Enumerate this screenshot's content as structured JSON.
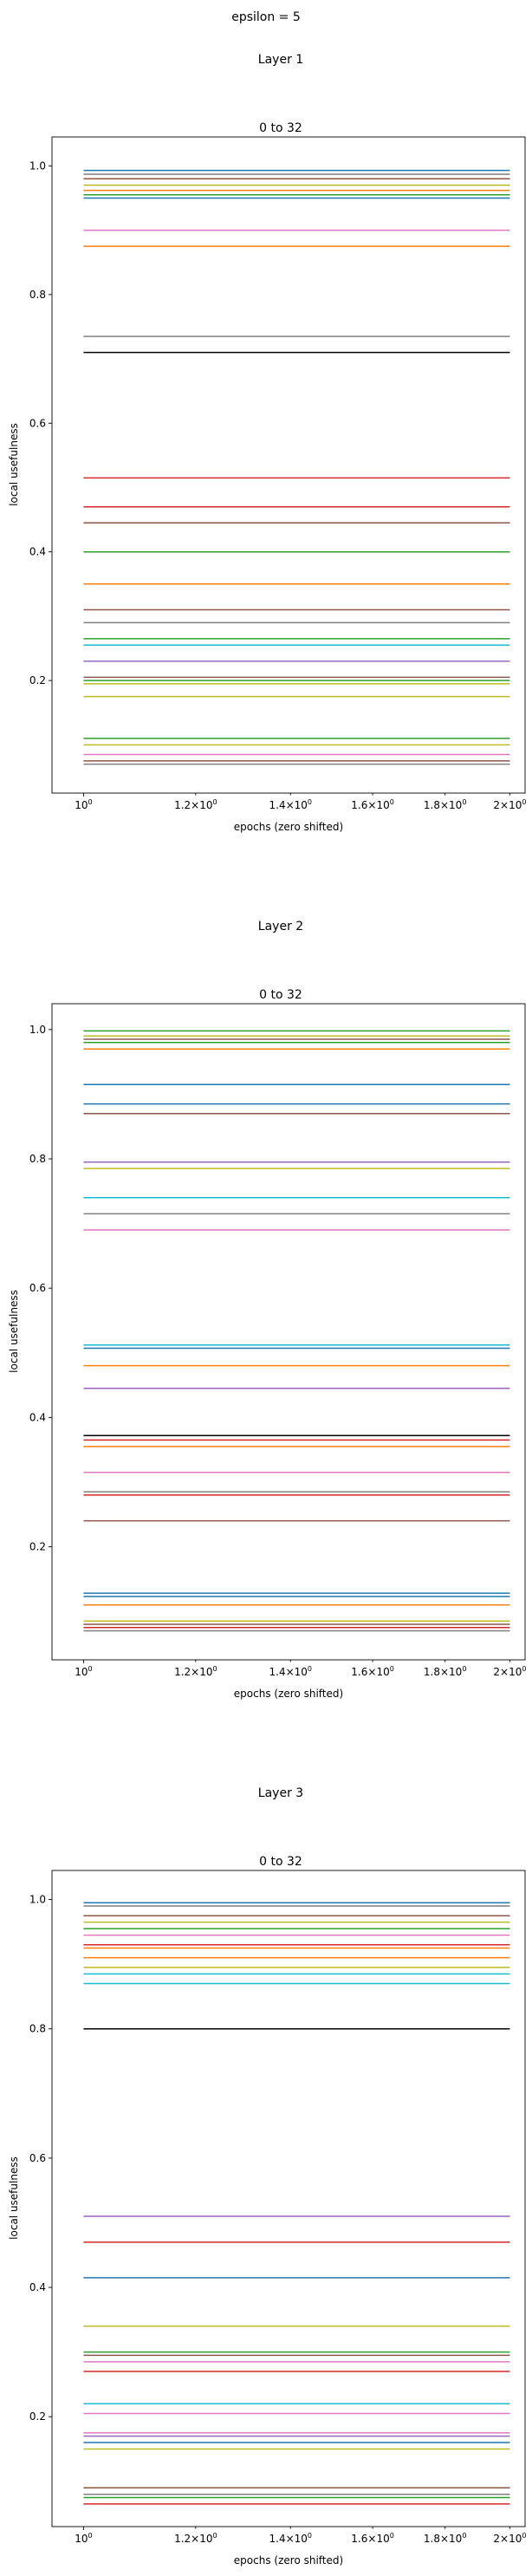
{
  "figure": {
    "suptitle": "epsilon = 5"
  },
  "palette": [
    "#1f77b4",
    "#ff7f0e",
    "#2ca02c",
    "#d62728",
    "#9467bd",
    "#8c564b",
    "#e377c2",
    "#7f7f7f",
    "#bcbd22",
    "#17becf"
  ],
  "chart_data": [
    {
      "type": "line",
      "section_title": "Layer 1",
      "title": "0 to 32",
      "xlabel": "epochs (zero shifted)",
      "ylabel": "local usefulness",
      "xscale": "log",
      "xlim": [
        0.95,
        2.05
      ],
      "ylim": [
        0.025,
        1.045
      ],
      "x": [
        1,
        2
      ],
      "xticks": [
        {
          "v": 1.0,
          "base": "10",
          "exp": "0",
          "prefix": ""
        },
        {
          "v": 1.2,
          "base": "10",
          "exp": "0",
          "prefix": "1.2×"
        },
        {
          "v": 1.4,
          "base": "10",
          "exp": "0",
          "prefix": "1.4×"
        },
        {
          "v": 1.6,
          "base": "10",
          "exp": "0",
          "prefix": "1.6×"
        },
        {
          "v": 1.8,
          "base": "10",
          "exp": "0",
          "prefix": "1.8×"
        },
        {
          "v": 2.0,
          "base": "10",
          "exp": "0",
          "prefix": "2×"
        }
      ],
      "yticks": [
        "0.2",
        "0.4",
        "0.6",
        "0.8",
        "1.0"
      ],
      "grid": false,
      "legend": "none",
      "series": [
        {
          "values": [
            0.993,
            0.993
          ],
          "color": "#1f77b4"
        },
        {
          "values": [
            0.987,
            0.987
          ],
          "color": "#7f7f7f"
        },
        {
          "values": [
            0.98,
            0.98
          ],
          "color": "#8c564b"
        },
        {
          "values": [
            0.97,
            0.97
          ],
          "color": "#bcbd22"
        },
        {
          "values": [
            0.962,
            0.962
          ],
          "color": "#ff7f0e"
        },
        {
          "values": [
            0.955,
            0.955
          ],
          "color": "#2ca02c"
        },
        {
          "values": [
            0.95,
            0.95
          ],
          "color": "#1f77b4"
        },
        {
          "values": [
            0.9,
            0.9
          ],
          "color": "#e377c2"
        },
        {
          "values": [
            0.875,
            0.875
          ],
          "color": "#ff7f0e"
        },
        {
          "values": [
            0.735,
            0.735
          ],
          "color": "#7f7f7f"
        },
        {
          "values": [
            0.71,
            0.71
          ],
          "color": "#000000"
        },
        {
          "values": [
            0.515,
            0.515
          ],
          "color": "#d62728"
        },
        {
          "values": [
            0.47,
            0.47
          ],
          "color": "#d62728"
        },
        {
          "values": [
            0.445,
            0.445
          ],
          "color": "#8c564b"
        },
        {
          "values": [
            0.4,
            0.4
          ],
          "color": "#2ca02c"
        },
        {
          "values": [
            0.35,
            0.35
          ],
          "color": "#ff7f0e"
        },
        {
          "values": [
            0.31,
            0.31
          ],
          "color": "#8c564b"
        },
        {
          "values": [
            0.29,
            0.29
          ],
          "color": "#7f7f7f"
        },
        {
          "values": [
            0.265,
            0.265
          ],
          "color": "#2ca02c"
        },
        {
          "values": [
            0.255,
            0.255
          ],
          "color": "#17becf"
        },
        {
          "values": [
            0.23,
            0.23
          ],
          "color": "#9467bd"
        },
        {
          "values": [
            0.205,
            0.205
          ],
          "color": "#8c564b"
        },
        {
          "values": [
            0.2,
            0.2
          ],
          "color": "#2ca02c"
        },
        {
          "values": [
            0.195,
            0.195
          ],
          "color": "#bcbd22"
        },
        {
          "values": [
            0.175,
            0.175
          ],
          "color": "#bcbd22"
        },
        {
          "values": [
            0.11,
            0.11
          ],
          "color": "#2ca02c"
        },
        {
          "values": [
            0.1,
            0.1
          ],
          "color": "#bcbd22"
        },
        {
          "values": [
            0.085,
            0.085
          ],
          "color": "#e377c2"
        },
        {
          "values": [
            0.075,
            0.075
          ],
          "color": "#8c564b"
        },
        {
          "values": [
            0.07,
            0.07
          ],
          "color": "#7f7f7f"
        }
      ]
    },
    {
      "type": "line",
      "section_title": "Layer 2",
      "title": "0 to 32",
      "xlabel": "epochs (zero shifted)",
      "ylabel": "local usefulness",
      "xscale": "log",
      "xlim": [
        0.95,
        2.05
      ],
      "ylim": [
        0.025,
        1.04
      ],
      "x": [
        1,
        2
      ],
      "xticks": [
        {
          "v": 1.0,
          "base": "10",
          "exp": "0",
          "prefix": ""
        },
        {
          "v": 1.2,
          "base": "10",
          "exp": "0",
          "prefix": "1.2×"
        },
        {
          "v": 1.4,
          "base": "10",
          "exp": "0",
          "prefix": "1.4×"
        },
        {
          "v": 1.6,
          "base": "10",
          "exp": "0",
          "prefix": "1.6×"
        },
        {
          "v": 1.8,
          "base": "10",
          "exp": "0",
          "prefix": "1.8×"
        },
        {
          "v": 2.0,
          "base": "10",
          "exp": "0",
          "prefix": "2×"
        }
      ],
      "yticks": [
        "0.2",
        "0.4",
        "0.6",
        "0.8",
        "1.0"
      ],
      "grid": false,
      "legend": "none",
      "series": [
        {
          "values": [
            0.998,
            0.998
          ],
          "color": "#2ca02c"
        },
        {
          "values": [
            0.99,
            0.99
          ],
          "color": "#bcbd22"
        },
        {
          "values": [
            0.985,
            0.985
          ],
          "color": "#8c564b"
        },
        {
          "values": [
            0.98,
            0.98
          ],
          "color": "#2ca02c"
        },
        {
          "values": [
            0.97,
            0.97
          ],
          "color": "#ff7f0e"
        },
        {
          "values": [
            0.915,
            0.915
          ],
          "color": "#1f77b4"
        },
        {
          "values": [
            0.885,
            0.885
          ],
          "color": "#1f77b4"
        },
        {
          "values": [
            0.87,
            0.87
          ],
          "color": "#8c564b"
        },
        {
          "values": [
            0.795,
            0.795
          ],
          "color": "#9467bd"
        },
        {
          "values": [
            0.785,
            0.785
          ],
          "color": "#bcbd22"
        },
        {
          "values": [
            0.74,
            0.74
          ],
          "color": "#17becf"
        },
        {
          "values": [
            0.715,
            0.715
          ],
          "color": "#7f7f7f"
        },
        {
          "values": [
            0.69,
            0.69
          ],
          "color": "#e377c2"
        },
        {
          "values": [
            0.512,
            0.512
          ],
          "color": "#17becf"
        },
        {
          "values": [
            0.507,
            0.507
          ],
          "color": "#1f77b4"
        },
        {
          "values": [
            0.48,
            0.48
          ],
          "color": "#ff7f0e"
        },
        {
          "values": [
            0.445,
            0.445
          ],
          "color": "#9467bd"
        },
        {
          "values": [
            0.372,
            0.372
          ],
          "color": "#000000"
        },
        {
          "values": [
            0.365,
            0.365
          ],
          "color": "#d62728"
        },
        {
          "values": [
            0.355,
            0.355
          ],
          "color": "#ff7f0e"
        },
        {
          "values": [
            0.315,
            0.315
          ],
          "color": "#e377c2"
        },
        {
          "values": [
            0.285,
            0.285
          ],
          "color": "#7f7f7f"
        },
        {
          "values": [
            0.28,
            0.28
          ],
          "color": "#d62728"
        },
        {
          "values": [
            0.24,
            0.24
          ],
          "color": "#8c564b"
        },
        {
          "values": [
            0.128,
            0.128
          ],
          "color": "#1f77b4"
        },
        {
          "values": [
            0.123,
            0.123
          ],
          "color": "#1f77b4"
        },
        {
          "values": [
            0.11,
            0.11
          ],
          "color": "#ff7f0e"
        },
        {
          "values": [
            0.085,
            0.085
          ],
          "color": "#bcbd22"
        },
        {
          "values": [
            0.08,
            0.08
          ],
          "color": "#8c564b"
        },
        {
          "values": [
            0.075,
            0.075
          ],
          "color": "#d62728"
        },
        {
          "values": [
            0.07,
            0.07
          ],
          "color": "#7f7f7f"
        }
      ]
    },
    {
      "type": "line",
      "section_title": "Layer 3",
      "title": "0 to 32",
      "xlabel": "epochs (zero shifted)",
      "ylabel": "local usefulness",
      "xscale": "log",
      "xlim": [
        0.95,
        2.05
      ],
      "ylim": [
        0.03,
        1.045
      ],
      "x": [
        1,
        2
      ],
      "xticks": [
        {
          "v": 1.0,
          "base": "10",
          "exp": "0",
          "prefix": ""
        },
        {
          "v": 1.2,
          "base": "10",
          "exp": "0",
          "prefix": "1.2×"
        },
        {
          "v": 1.4,
          "base": "10",
          "exp": "0",
          "prefix": "1.4×"
        },
        {
          "v": 1.6,
          "base": "10",
          "exp": "0",
          "prefix": "1.6×"
        },
        {
          "v": 1.8,
          "base": "10",
          "exp": "0",
          "prefix": "1.8×"
        },
        {
          "v": 2.0,
          "base": "10",
          "exp": "0",
          "prefix": "2×"
        }
      ],
      "yticks": [
        "0.2",
        "0.4",
        "0.6",
        "0.8",
        "1.0"
      ],
      "grid": false,
      "legend": "none",
      "series": [
        {
          "values": [
            0.995,
            0.995
          ],
          "color": "#1f77b4"
        },
        {
          "values": [
            0.99,
            0.99
          ],
          "color": "#7f7f7f"
        },
        {
          "values": [
            0.975,
            0.975
          ],
          "color": "#8c564b"
        },
        {
          "values": [
            0.965,
            0.965
          ],
          "color": "#bcbd22"
        },
        {
          "values": [
            0.955,
            0.955
          ],
          "color": "#2ca02c"
        },
        {
          "values": [
            0.945,
            0.945
          ],
          "color": "#e377c2"
        },
        {
          "values": [
            0.93,
            0.93
          ],
          "color": "#d62728"
        },
        {
          "values": [
            0.925,
            0.925
          ],
          "color": "#ff7f0e"
        },
        {
          "values": [
            0.91,
            0.91
          ],
          "color": "#ff7f0e"
        },
        {
          "values": [
            0.895,
            0.895
          ],
          "color": "#bcbd22"
        },
        {
          "values": [
            0.885,
            0.885
          ],
          "color": "#17becf"
        },
        {
          "values": [
            0.87,
            0.87
          ],
          "color": "#17becf"
        },
        {
          "values": [
            0.8,
            0.8
          ],
          "color": "#000000"
        },
        {
          "values": [
            0.51,
            0.51
          ],
          "color": "#9467bd"
        },
        {
          "values": [
            0.47,
            0.47
          ],
          "color": "#d62728"
        },
        {
          "values": [
            0.415,
            0.415
          ],
          "color": "#1f77b4"
        },
        {
          "values": [
            0.34,
            0.34
          ],
          "color": "#bcbd22"
        },
        {
          "values": [
            0.3,
            0.3
          ],
          "color": "#2ca02c"
        },
        {
          "values": [
            0.295,
            0.295
          ],
          "color": "#8c564b"
        },
        {
          "values": [
            0.285,
            0.285
          ],
          "color": "#e377c2"
        },
        {
          "values": [
            0.27,
            0.27
          ],
          "color": "#d62728"
        },
        {
          "values": [
            0.22,
            0.22
          ],
          "color": "#17becf"
        },
        {
          "values": [
            0.205,
            0.205
          ],
          "color": "#e377c2"
        },
        {
          "values": [
            0.175,
            0.175
          ],
          "color": "#e377c2"
        },
        {
          "values": [
            0.17,
            0.17
          ],
          "color": "#9467bd"
        },
        {
          "values": [
            0.16,
            0.16
          ],
          "color": "#1f77b4"
        },
        {
          "values": [
            0.15,
            0.15
          ],
          "color": "#bcbd22"
        },
        {
          "values": [
            0.09,
            0.09
          ],
          "color": "#8c564b"
        },
        {
          "values": [
            0.08,
            0.08
          ],
          "color": "#7f7f7f"
        },
        {
          "values": [
            0.075,
            0.075
          ],
          "color": "#2ca02c"
        },
        {
          "values": [
            0.065,
            0.065
          ],
          "color": "#d62728"
        }
      ]
    }
  ]
}
